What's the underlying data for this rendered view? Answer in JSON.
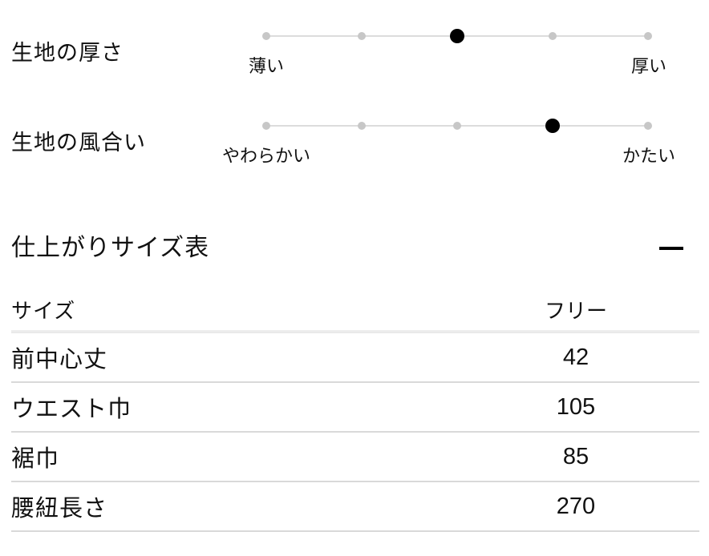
{
  "colors": {
    "text": "#111111",
    "active_dot": "#000000",
    "inactive_dot": "#c7c7c7",
    "track": "#dcdcdc",
    "row_divider": "#d9d9d9",
    "header_rule": "#ededed"
  },
  "fabric_scales": {
    "items": [
      {
        "label": "生地の厚さ",
        "left_label": "薄い",
        "right_label": "厚い",
        "levels": 5,
        "value": 3
      },
      {
        "label": "生地の風合い",
        "left_label": "やわらかい",
        "right_label": "かたい",
        "levels": 5,
        "value": 4
      }
    ]
  },
  "size_section": {
    "title": "仕上がりサイズ表",
    "collapse_icon": "minus-icon",
    "expanded": true,
    "table": {
      "label_column_header": "サイズ",
      "value_column_header": "フリー",
      "rows": [
        {
          "label": "前中心丈",
          "value": "42"
        },
        {
          "label": "ウエスト巾",
          "value": "105"
        },
        {
          "label": "裾巾",
          "value": "85"
        },
        {
          "label": "腰紐長さ",
          "value": "270"
        }
      ]
    }
  }
}
